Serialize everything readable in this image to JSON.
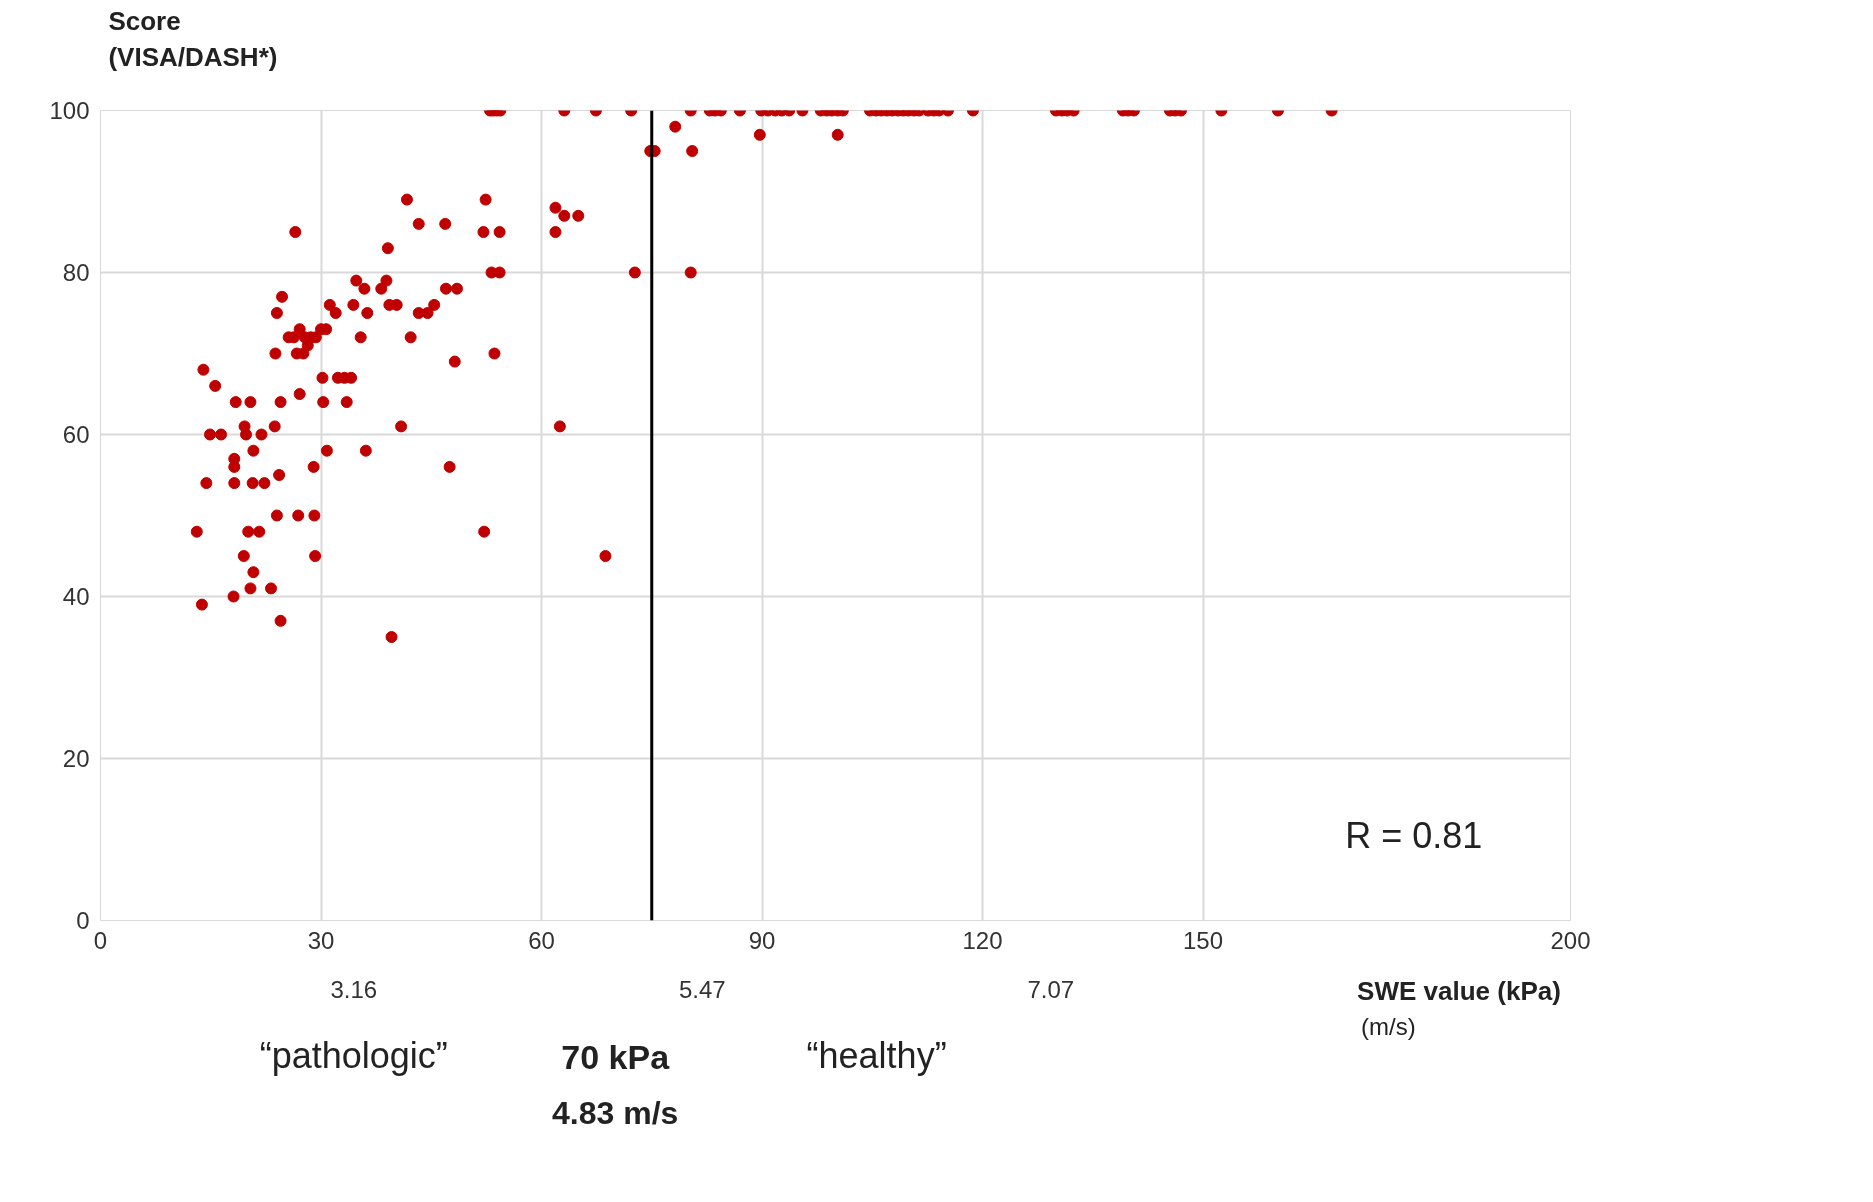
{
  "chart_data": {
    "type": "scatter",
    "ylabel": "Score\n(VISA/DASH*)",
    "xlabel": "SWE value (kPa)",
    "color": "#c00000",
    "marker": "circle",
    "grid": true,
    "xlim": [
      0,
      200
    ],
    "xticks": [
      0,
      30,
      60,
      90,
      120,
      150,
      200
    ],
    "ylim": [
      0,
      100
    ],
    "yticks": [
      0,
      20,
      40,
      60,
      80,
      100
    ],
    "ref_lines": [
      {
        "axis": "x",
        "value": 75,
        "label": "70 kPa",
        "color": "#000000"
      }
    ],
    "annotations": [
      "R = 0.81",
      "“pathologic”",
      "“healthy”",
      "4.83 m/s",
      "(m/s)",
      "3.16",
      "5.47",
      "7.07"
    ],
    "x": [
      53.0,
      53.4,
      53.9,
      54.4,
      63.1,
      67.4,
      72.2,
      80.3,
      82.9,
      83.6,
      84.4,
      87.0,
      89.9,
      90.8,
      91.8,
      92.7,
      93.7,
      95.5,
      98.0,
      98.8,
      99.5,
      100.3,
      101.0,
      104.7,
      105.5,
      106.2,
      107.0,
      107.7,
      108.5,
      109.2,
      109.9,
      110.7,
      111.4,
      112.6,
      113.4,
      114.1,
      115.3,
      118.7,
      130.0,
      130.8,
      131.5,
      132.4,
      139.1,
      139.8,
      140.6,
      145.5,
      146.2,
      147.0,
      152.5,
      160.2,
      167.5,
      74.8,
      75.4,
      78.2,
      80.5,
      89.7,
      100.3,
      80.3,
      72.7,
      61.9,
      61.9,
      63.1,
      65.0,
      62.5,
      68.7,
      52.4,
      52.1,
      54.3,
      53.2,
      54.3,
      53.6,
      52.2,
      41.7,
      43.3,
      46.9,
      39.1,
      43.3,
      44.5,
      45.4,
      47.0,
      48.5,
      48.2,
      47.5,
      42.2,
      40.9,
      39.6,
      34.8,
      35.9,
      36.3,
      34.4,
      35.4,
      36.1,
      38.2,
      38.9,
      39.3,
      40.3,
      31.2,
      32.0,
      32.3,
      33.2,
      34.1,
      33.5,
      30.3,
      30.2,
      30.8,
      29.0,
      29.1,
      29.2,
      26.5,
      25.6,
      26.3,
      27.1,
      27.8,
      28.6,
      29.3,
      30.0,
      30.7,
      26.7,
      27.6,
      28.2,
      27.1,
      26.9,
      24.0,
      24.7,
      23.8,
      24.5,
      23.7,
      24.3,
      24.0,
      24.5,
      23.2,
      21.9,
      22.3,
      20.7,
      20.4,
      18.4,
      19.6,
      19.8,
      20.8,
      18.2,
      18.2,
      18.2,
      19.5,
      20.1,
      21.6,
      20.8,
      20.4,
      18.1,
      15.6,
      16.4,
      14.9,
      14.4,
      14.0,
      13.1,
      13.8
    ],
    "values": [
      100,
      100,
      100,
      100,
      100,
      100,
      100,
      100,
      100,
      100,
      100,
      100,
      100,
      100,
      100,
      100,
      100,
      100,
      100,
      100,
      100,
      100,
      100,
      100,
      100,
      100,
      100,
      100,
      100,
      100,
      100,
      100,
      100,
      100,
      100,
      100,
      100,
      100,
      100,
      100,
      100,
      100,
      100,
      100,
      100,
      100,
      100,
      100,
      100,
      100,
      100,
      95,
      95,
      98,
      95,
      97,
      97,
      80,
      80,
      88,
      85,
      87,
      87,
      61,
      45,
      89,
      85,
      85,
      80,
      80,
      70,
      48,
      89,
      86,
      86,
      83,
      75,
      75,
      76,
      78,
      78,
      69,
      56,
      72,
      61,
      35,
      79,
      78,
      75,
      76,
      72,
      58,
      78,
      79,
      76,
      76,
      76,
      75,
      67,
      67,
      67,
      64,
      64,
      67,
      58,
      56,
      50,
      45,
      85,
      72,
      72,
      73,
      72,
      72,
      72,
      73,
      73,
      70,
      70,
      71,
      65,
      50,
      75,
      77,
      70,
      64,
      61,
      55,
      50,
      37,
      41,
      60,
      54,
      54,
      64,
      64,
      61,
      60,
      58,
      57,
      56,
      54,
      45,
      48,
      48,
      43,
      41,
      40,
      66,
      60,
      60,
      54,
      68,
      48,
      39
    ]
  }
}
